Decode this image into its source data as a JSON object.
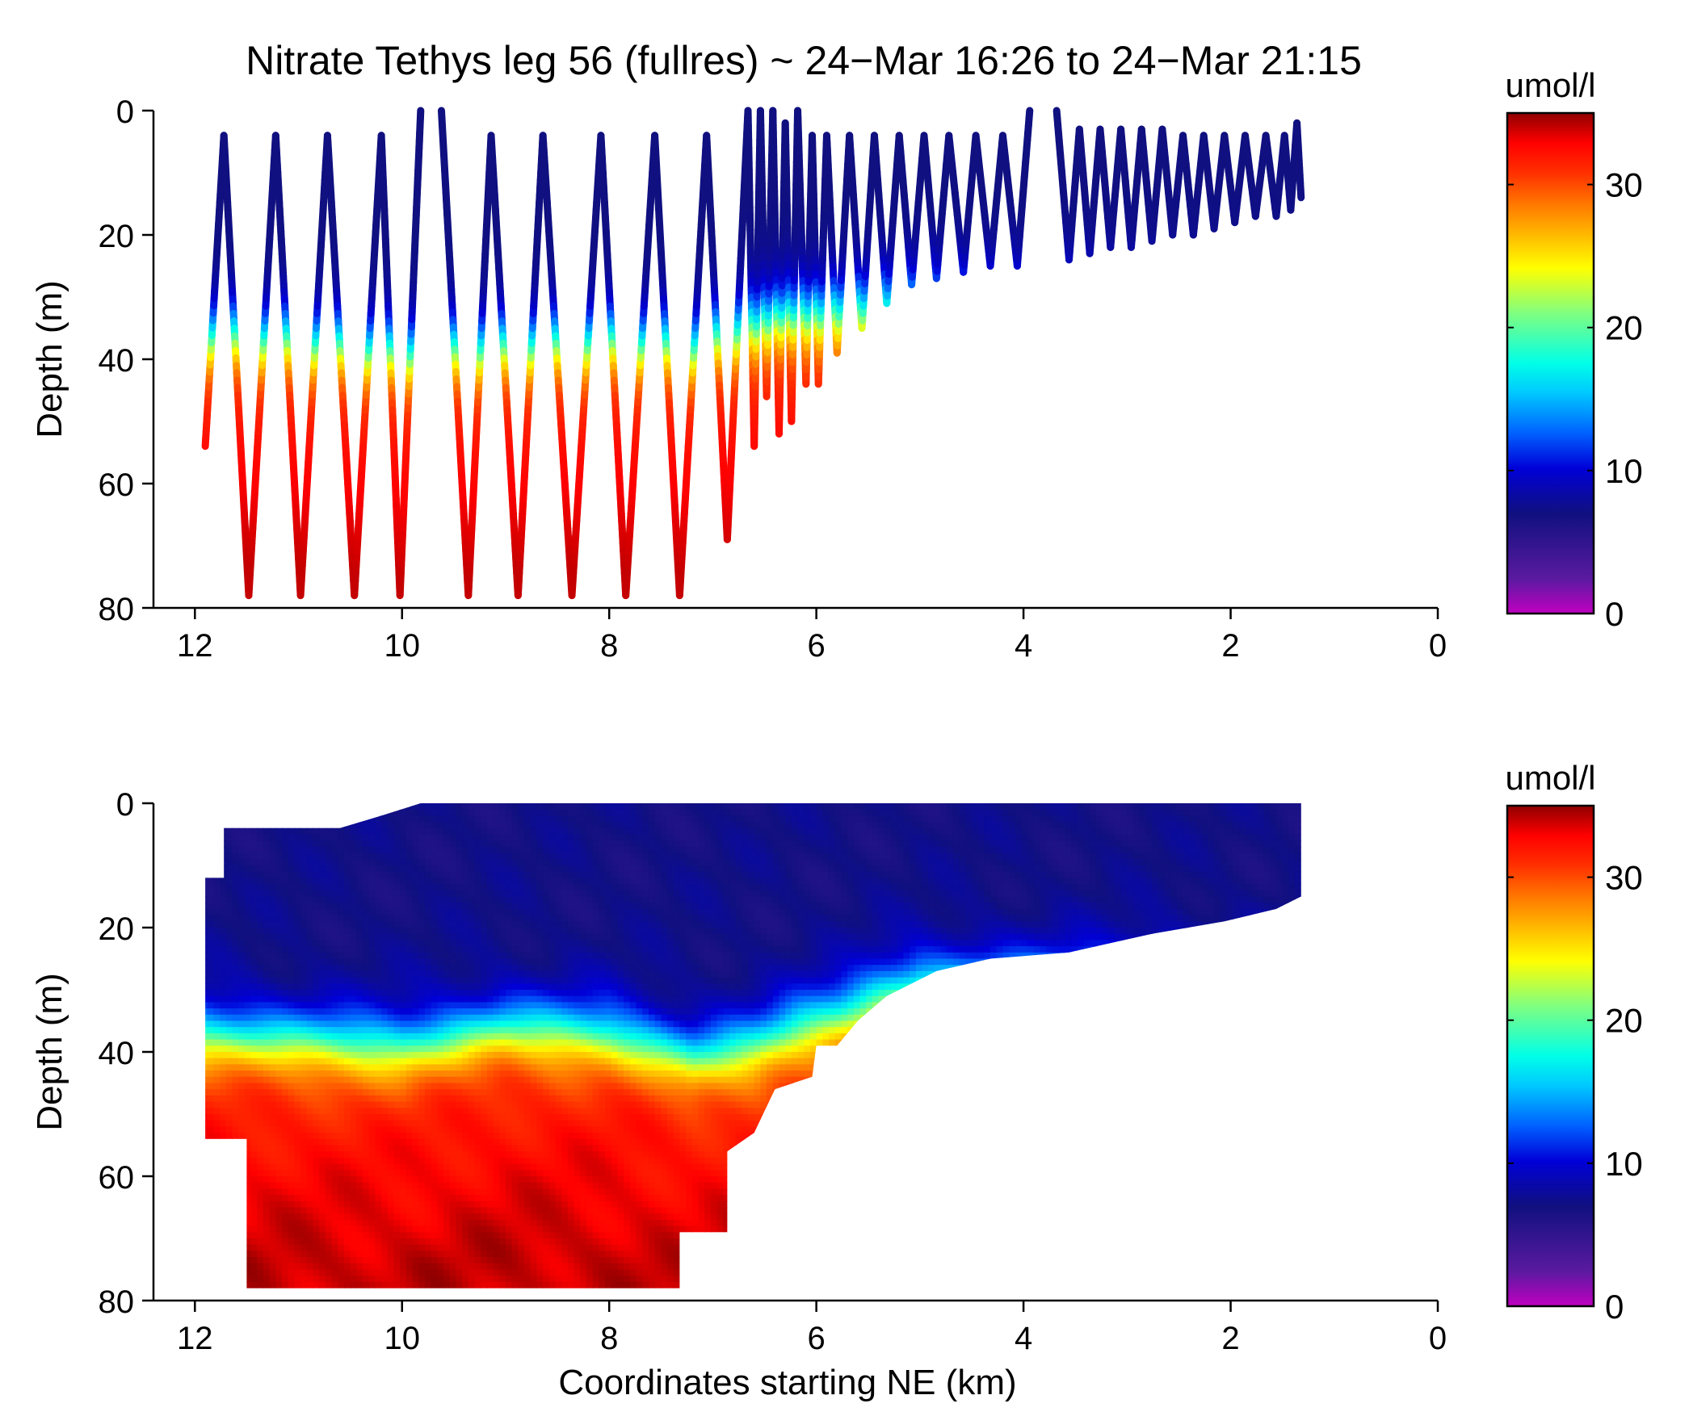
{
  "title": "Nitrate Tethys leg 56 (fullres) ~ 24−Mar 16:26 to 24−Mar 21:15",
  "colors": {
    "colormap": [
      "#c000c0",
      "#5a1aa0",
      "#101080",
      "#0000d8",
      "#0060ff",
      "#00c8ff",
      "#00ffe8",
      "#80ff80",
      "#ffff00",
      "#ffc000",
      "#ff8000",
      "#ff3000",
      "#ff0000",
      "#900000"
    ],
    "colormap_stops": [
      0,
      0.07,
      0.2,
      0.29,
      0.36,
      0.44,
      0.5,
      0.6,
      0.69,
      0.75,
      0.81,
      0.88,
      0.94,
      1.0
    ]
  },
  "chart_data": [
    {
      "type": "scatter",
      "name": "top-panel",
      "title": "Nitrate Tethys leg 56 (fullres) ~ 24−Mar 16:26 to 24−Mar 21:15",
      "xlabel": "",
      "ylabel": "Depth (m)",
      "xlim": [
        12.4,
        0
      ],
      "ylim": [
        0,
        80
      ],
      "x_ticks": [
        12,
        10,
        8,
        6,
        4,
        2,
        0
      ],
      "y_ticks": [
        0,
        20,
        40,
        60,
        80
      ],
      "x_tick_labels": [
        "12",
        "10",
        "8",
        "6",
        "4",
        "2",
        "0"
      ],
      "y_tick_labels": [
        "0",
        "20",
        "40",
        "60",
        "80"
      ],
      "colorbar": {
        "label": "umol/l",
        "range": [
          0,
          35
        ],
        "ticks": [
          0,
          10,
          20,
          30
        ],
        "tick_labels": [
          "0",
          "10",
          "20",
          "30"
        ]
      },
      "profile_vertices": [
        [
          11.9,
          54
        ],
        [
          11.72,
          4
        ],
        [
          11.48,
          78
        ],
        [
          11.22,
          4
        ],
        [
          10.98,
          78
        ],
        [
          10.72,
          4
        ],
        [
          10.46,
          78
        ],
        [
          10.2,
          4
        ],
        [
          10.02,
          78
        ],
        [
          9.82,
          0
        ],
        [
          9.62,
          0
        ],
        [
          9.36,
          78
        ],
        [
          9.14,
          4
        ],
        [
          8.88,
          78
        ],
        [
          8.64,
          4
        ],
        [
          8.36,
          78
        ],
        [
          8.08,
          4
        ],
        [
          7.84,
          78
        ],
        [
          7.56,
          4
        ],
        [
          7.32,
          78
        ],
        [
          7.06,
          4
        ],
        [
          6.86,
          69
        ],
        [
          6.66,
          0
        ],
        [
          6.6,
          54
        ],
        [
          6.54,
          0
        ],
        [
          6.48,
          46
        ],
        [
          6.42,
          0
        ],
        [
          6.36,
          52
        ],
        [
          6.3,
          2
        ],
        [
          6.24,
          50
        ],
        [
          6.18,
          0
        ],
        [
          6.1,
          44
        ],
        [
          6.04,
          4
        ],
        [
          5.98,
          44
        ],
        [
          5.9,
          4
        ],
        [
          5.8,
          39
        ],
        [
          5.68,
          4
        ],
        [
          5.56,
          35
        ],
        [
          5.44,
          4
        ],
        [
          5.32,
          31
        ],
        [
          5.2,
          4
        ],
        [
          5.08,
          28
        ],
        [
          4.96,
          4
        ],
        [
          4.84,
          27
        ],
        [
          4.72,
          4
        ],
        [
          4.58,
          26
        ],
        [
          4.46,
          4
        ],
        [
          4.32,
          25
        ],
        [
          4.2,
          4
        ],
        [
          4.06,
          25
        ],
        [
          3.94,
          0
        ],
        [
          3.68,
          0
        ],
        [
          3.56,
          24
        ],
        [
          3.46,
          3
        ],
        [
          3.36,
          23
        ],
        [
          3.26,
          3
        ],
        [
          3.16,
          22
        ],
        [
          3.06,
          3
        ],
        [
          2.96,
          22
        ],
        [
          2.86,
          3
        ],
        [
          2.76,
          21
        ],
        [
          2.66,
          3
        ],
        [
          2.56,
          20
        ],
        [
          2.46,
          4
        ],
        [
          2.36,
          20
        ],
        [
          2.26,
          4
        ],
        [
          2.16,
          19
        ],
        [
          2.06,
          4
        ],
        [
          1.96,
          18
        ],
        [
          1.86,
          4
        ],
        [
          1.76,
          17
        ],
        [
          1.66,
          4
        ],
        [
          1.56,
          17
        ],
        [
          1.48,
          4
        ],
        [
          1.42,
          16
        ],
        [
          1.36,
          2
        ],
        [
          1.32,
          14
        ]
      ],
      "nitracline": [
        [
          12.0,
          36
        ],
        [
          11.0,
          37
        ],
        [
          10.0,
          39
        ],
        [
          9.0,
          38
        ],
        [
          8.0,
          37
        ],
        [
          7.2,
          38
        ],
        [
          6.7,
          35
        ],
        [
          6.3,
          33
        ],
        [
          6.0,
          33
        ],
        [
          5.5,
          32
        ],
        [
          5.0,
          31
        ]
      ]
    },
    {
      "type": "heatmap",
      "name": "bottom-panel",
      "xlabel": "Coordinates starting NE (km)",
      "ylabel": "Depth (m)",
      "xlim": [
        12.4,
        0
      ],
      "ylim": [
        0,
        80
      ],
      "x_ticks": [
        12,
        10,
        8,
        6,
        4,
        2,
        0
      ],
      "y_ticks": [
        0,
        20,
        40,
        60,
        80
      ],
      "x_tick_labels": [
        "12",
        "10",
        "8",
        "6",
        "4",
        "2",
        "0"
      ],
      "y_tick_labels": [
        "0",
        "20",
        "40",
        "60",
        "80"
      ],
      "colorbar": {
        "label": "umol/l",
        "range": [
          0,
          35
        ],
        "ticks": [
          0,
          10,
          20,
          30
        ],
        "tick_labels": [
          "0",
          "10",
          "20",
          "30"
        ]
      },
      "coverage_top": [
        [
          11.72,
          4
        ],
        [
          10.6,
          4
        ],
        [
          10.2,
          2
        ],
        [
          9.82,
          0
        ],
        [
          1.32,
          0
        ]
      ],
      "coverage_bottom": [
        [
          11.9,
          42
        ],
        [
          11.9,
          54
        ],
        [
          11.5,
          54
        ],
        [
          11.5,
          78
        ],
        [
          7.32,
          78
        ],
        [
          7.32,
          69
        ],
        [
          6.86,
          69
        ],
        [
          6.86,
          56
        ],
        [
          6.6,
          53
        ],
        [
          6.4,
          46
        ],
        [
          6.04,
          44
        ],
        [
          6.0,
          39
        ],
        [
          5.8,
          39
        ],
        [
          5.6,
          35
        ],
        [
          5.32,
          31
        ],
        [
          4.84,
          27
        ],
        [
          4.32,
          25
        ],
        [
          3.56,
          24
        ],
        [
          2.76,
          21
        ],
        [
          2.06,
          19
        ],
        [
          1.56,
          17
        ],
        [
          1.32,
          15
        ]
      ],
      "nitracline": [
        [
          12.0,
          37
        ],
        [
          11.0,
          38
        ],
        [
          10.0,
          39
        ],
        [
          9.0,
          36
        ],
        [
          8.0,
          37
        ],
        [
          7.2,
          41
        ],
        [
          6.6,
          39
        ],
        [
          6.2,
          36
        ],
        [
          5.8,
          34
        ],
        [
          5.4,
          31
        ],
        [
          5.0,
          29
        ]
      ]
    }
  ]
}
